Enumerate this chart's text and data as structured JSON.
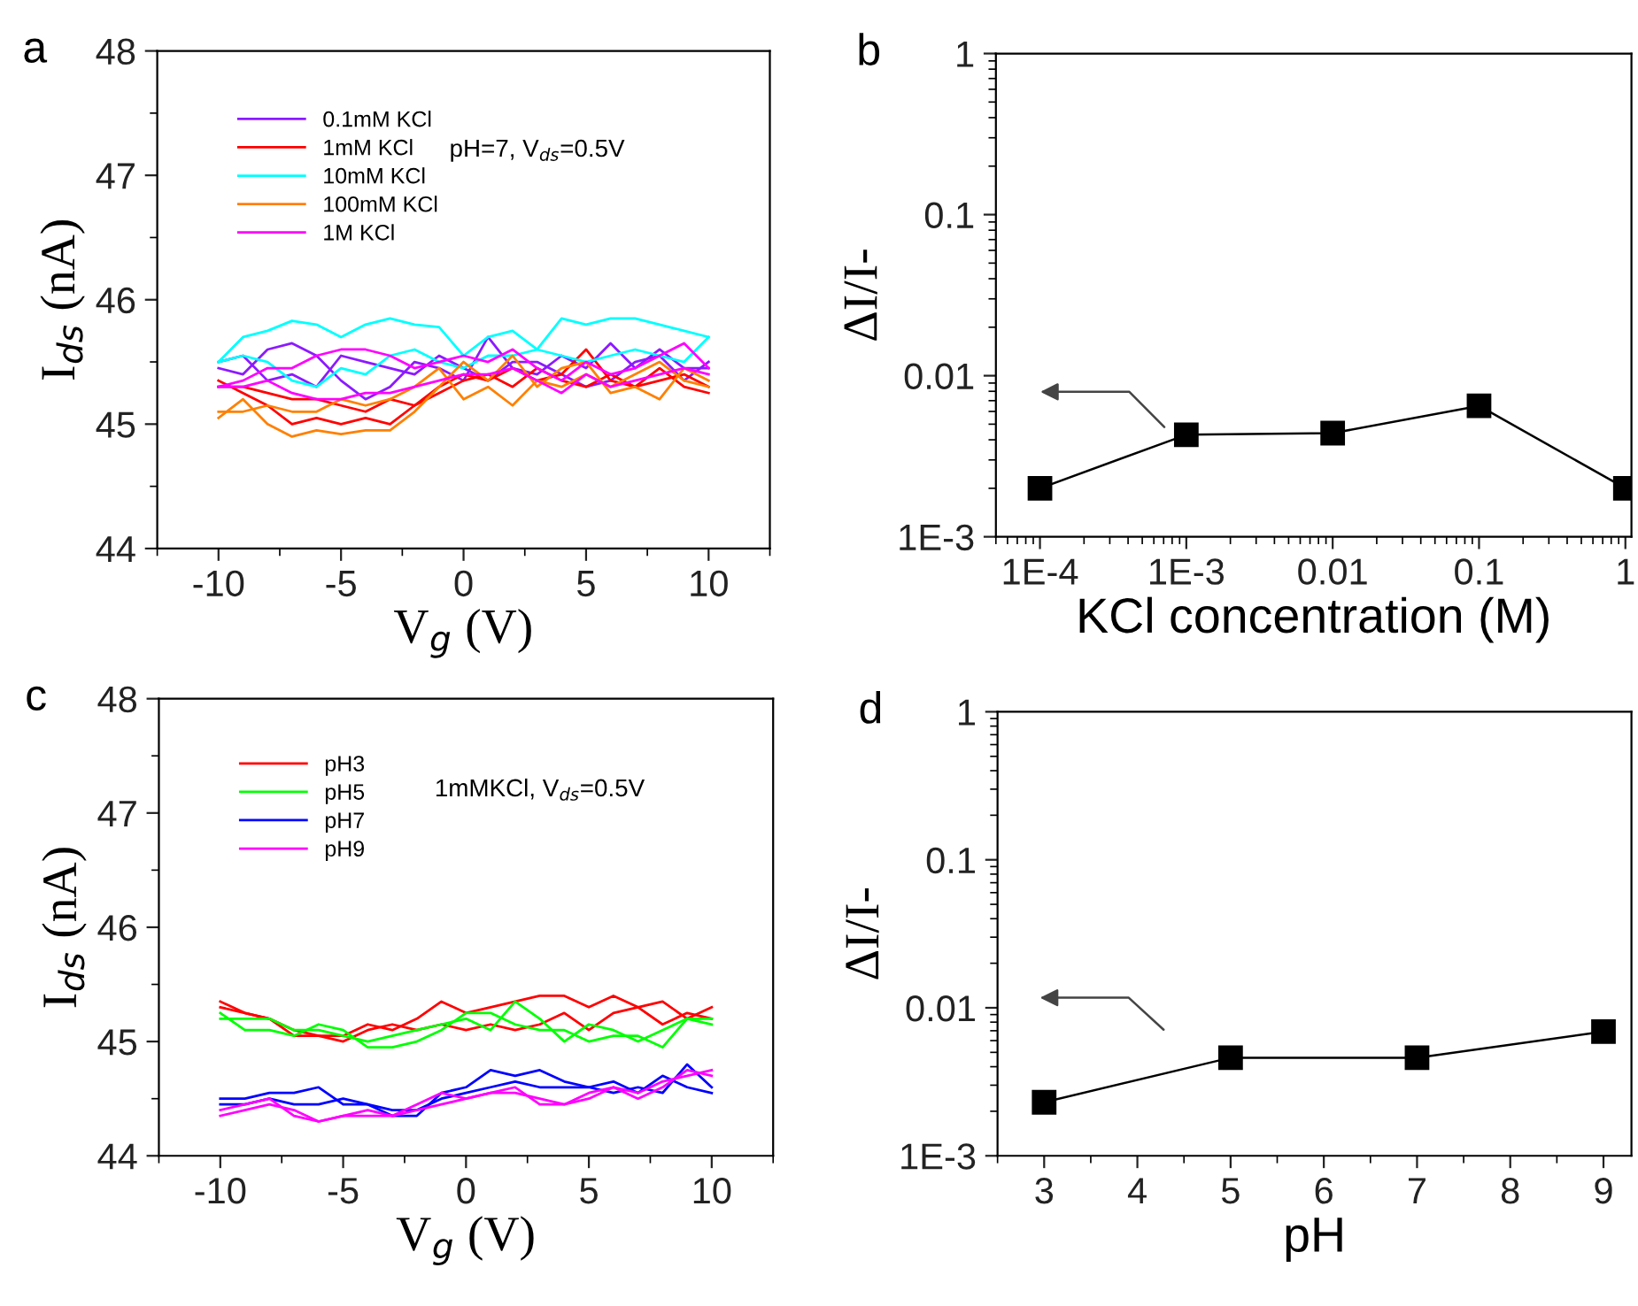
{
  "chart_data": [
    {
      "type": "line",
      "title": "a",
      "xlabel": "V$_{g}$ (V)",
      "ylabel": "I$_{ds}$ (nA)",
      "annotations": [
        "pH=7, V$_{ds}$=0.5V"
      ],
      "x": [
        -10,
        -9,
        -8,
        -7,
        -6,
        -5,
        -4,
        -3,
        -2,
        -1,
        0,
        1,
        2,
        3,
        4,
        5,
        6,
        7,
        8,
        9,
        10
      ],
      "xlim": [
        -12.5,
        12.5
      ],
      "xticks": [
        -10,
        -5,
        0,
        5,
        10
      ],
      "ylim": [
        44,
        48
      ],
      "yticks": [
        44,
        45,
        46,
        47,
        48
      ],
      "legend": "top left",
      "grid": false,
      "series": [
        {
          "name": "0.1mM KCl",
          "color": "#8c1aff",
          "values": [
            45.45,
            45.4,
            45.6,
            45.65,
            45.55,
            45.35,
            45.2,
            45.3,
            45.5,
            45.45,
            45.35,
            45.7,
            45.45,
            45.4,
            45.55,
            45.45,
            45.65,
            45.45,
            45.6,
            45.45,
            45.45
          ]
        },
        {
          "color": "#8c1aff",
          "values": [
            45.5,
            45.55,
            45.35,
            45.4,
            45.3,
            45.55,
            45.5,
            45.45,
            45.4,
            45.55,
            45.45,
            45.35,
            45.5,
            45.5,
            45.4,
            45.3,
            45.35,
            45.5,
            45.55,
            45.35,
            45.5
          ]
        },
        {
          "name": "1mM KCl",
          "color": "#ff0000",
          "values": [
            45.35,
            45.25,
            45.15,
            45.0,
            45.05,
            45.0,
            45.05,
            45.0,
            45.15,
            45.3,
            45.4,
            45.35,
            45.45,
            45.35,
            45.4,
            45.6,
            45.35,
            45.3,
            45.45,
            45.3,
            45.25
          ]
        },
        {
          "color": "#ff0000",
          "values": [
            45.3,
            45.3,
            45.25,
            45.2,
            45.2,
            45.15,
            45.1,
            45.2,
            45.15,
            45.25,
            45.35,
            45.4,
            45.3,
            45.45,
            45.35,
            45.3,
            45.4,
            45.3,
            45.35,
            45.4,
            45.3
          ]
        },
        {
          "name": "10mM KCl",
          "color": "#00ffff",
          "values": [
            45.5,
            45.7,
            45.75,
            45.83,
            45.8,
            45.7,
            45.8,
            45.85,
            45.8,
            45.78,
            45.55,
            45.7,
            45.75,
            45.6,
            45.85,
            45.8,
            45.85,
            45.85,
            45.8,
            45.75,
            45.7
          ]
        },
        {
          "color": "#00ffff",
          "values": [
            45.5,
            45.55,
            45.5,
            45.35,
            45.3,
            45.45,
            45.4,
            45.55,
            45.6,
            45.5,
            45.45,
            45.55,
            45.55,
            45.6,
            45.55,
            45.5,
            45.55,
            45.6,
            45.55,
            45.5,
            45.7
          ]
        },
        {
          "name": "100mM KCl",
          "color": "#ff8000",
          "values": [
            45.05,
            45.2,
            45.0,
            44.9,
            44.95,
            44.92,
            44.95,
            44.95,
            45.1,
            45.3,
            45.5,
            45.35,
            45.55,
            45.3,
            45.45,
            45.5,
            45.25,
            45.3,
            45.2,
            45.45,
            45.35
          ]
        },
        {
          "color": "#ff8000",
          "values": [
            45.1,
            45.1,
            45.15,
            45.1,
            45.1,
            45.2,
            45.15,
            45.2,
            45.3,
            45.45,
            45.2,
            45.3,
            45.15,
            45.35,
            45.3,
            45.4,
            45.3,
            45.4,
            45.5,
            45.35,
            45.3
          ]
        },
        {
          "name": "1M KCl",
          "color": "#ff00ff",
          "values": [
            45.3,
            45.35,
            45.45,
            45.45,
            45.55,
            45.6,
            45.6,
            45.55,
            45.45,
            45.5,
            45.55,
            45.5,
            45.6,
            45.45,
            45.35,
            45.5,
            45.4,
            45.45,
            45.55,
            45.65,
            45.45
          ]
        },
        {
          "color": "#ff00ff",
          "values": [
            45.3,
            45.3,
            45.35,
            45.25,
            45.2,
            45.2,
            45.25,
            45.25,
            45.3,
            45.35,
            45.4,
            45.4,
            45.45,
            45.35,
            45.25,
            45.4,
            45.3,
            45.35,
            45.4,
            45.45,
            45.4
          ]
        }
      ]
    },
    {
      "type": "line",
      "title": "b",
      "xlabel": "KCl concentration (M)",
      "ylabel": "ΔI/I-",
      "log": "xy",
      "marker": "square",
      "legend": false,
      "grid": false,
      "x": [
        0.0001,
        0.001,
        0.01,
        0.1,
        1
      ],
      "xlim": [
        5e-05,
        1.1
      ],
      "xticks": [
        {
          "value": 0.0001,
          "label": "1E-4"
        },
        {
          "value": 0.001,
          "label": "1E-3"
        },
        0.01,
        0.1,
        1
      ],
      "ylim": [
        0.001,
        1
      ],
      "yticks": [
        {
          "value": 0.001,
          "label": "1E-3"
        },
        0.01,
        0.1,
        1
      ],
      "series": [
        {
          "color": "#000000",
          "values": [
            0.002,
            0.0043,
            0.0044,
            0.0065,
            0.002
          ]
        }
      ]
    },
    {
      "type": "line",
      "title": "c",
      "xlabel": "V$_{g}$ (V)",
      "ylabel": "I$_{ds}$ (nA)",
      "annotations": [
        "1mMKCl, V$_{ds}$=0.5V"
      ],
      "x": [
        -10,
        -9,
        -8,
        -7,
        -6,
        -5,
        -4,
        -3,
        -2,
        -1,
        0,
        1,
        2,
        3,
        4,
        5,
        6,
        7,
        8,
        9,
        10
      ],
      "xlim": [
        -12.5,
        12.5
      ],
      "xticks": [
        -10,
        -5,
        0,
        5,
        10
      ],
      "ylim": [
        44,
        48
      ],
      "yticks": [
        44,
        45,
        46,
        47,
        48
      ],
      "legend": "top left",
      "grid": false,
      "series": [
        {
          "name": "pH3",
          "color": "#ff0000",
          "values": [
            45.3,
            45.25,
            45.2,
            45.05,
            45.05,
            45.05,
            45.15,
            45.1,
            45.2,
            45.35,
            45.25,
            45.3,
            45.35,
            45.4,
            45.4,
            45.3,
            45.4,
            45.3,
            45.35,
            45.2,
            45.3
          ]
        },
        {
          "color": "#ff0000",
          "values": [
            45.35,
            45.25,
            45.2,
            45.1,
            45.05,
            45.0,
            45.1,
            45.15,
            45.1,
            45.15,
            45.1,
            45.15,
            45.1,
            45.15,
            45.25,
            45.1,
            45.25,
            45.3,
            45.15,
            45.25,
            45.2
          ]
        },
        {
          "name": "pH5",
          "color": "#00ff00",
          "values": [
            45.25,
            45.1,
            45.1,
            45.05,
            45.15,
            45.1,
            44.95,
            44.95,
            45.0,
            45.1,
            45.25,
            45.25,
            45.15,
            45.1,
            45.1,
            45.0,
            45.05,
            45.05,
            44.95,
            45.2,
            45.15
          ]
        },
        {
          "color": "#00ff00",
          "values": [
            45.2,
            45.2,
            45.2,
            45.1,
            45.1,
            45.05,
            45.0,
            45.05,
            45.1,
            45.15,
            45.2,
            45.1,
            45.35,
            45.2,
            45.0,
            45.15,
            45.1,
            45.0,
            45.1,
            45.2,
            45.2
          ]
        },
        {
          "name": "pH7",
          "color": "#0000ff",
          "values": [
            44.5,
            44.5,
            44.55,
            44.55,
            44.6,
            44.45,
            44.45,
            44.35,
            44.35,
            44.55,
            44.6,
            44.75,
            44.7,
            44.75,
            44.65,
            44.6,
            44.55,
            44.6,
            44.55,
            44.8,
            44.6
          ]
        },
        {
          "color": "#0000ff",
          "values": [
            44.45,
            44.45,
            44.5,
            44.45,
            44.45,
            44.5,
            44.45,
            44.4,
            44.4,
            44.5,
            44.55,
            44.6,
            44.65,
            44.6,
            44.6,
            44.6,
            44.65,
            44.55,
            44.7,
            44.6,
            44.55
          ]
        },
        {
          "name": "pH9",
          "color": "#ff00ff",
          "values": [
            44.35,
            44.4,
            44.45,
            44.4,
            44.3,
            44.35,
            44.35,
            44.35,
            44.45,
            44.55,
            44.5,
            44.55,
            44.6,
            44.45,
            44.45,
            44.55,
            44.6,
            44.55,
            44.65,
            44.7,
            44.75
          ]
        },
        {
          "color": "#ff00ff",
          "values": [
            44.4,
            44.45,
            44.5,
            44.35,
            44.3,
            44.35,
            44.4,
            44.35,
            44.4,
            44.45,
            44.5,
            44.55,
            44.55,
            44.5,
            44.45,
            44.5,
            44.6,
            44.5,
            44.6,
            44.75,
            44.7
          ]
        }
      ]
    },
    {
      "type": "line",
      "title": "d",
      "xlabel": "pH",
      "ylabel": "ΔI/I-",
      "log": "y",
      "marker": "square",
      "legend": false,
      "grid": false,
      "x": [
        3,
        5,
        7,
        9
      ],
      "xlim": [
        2.5,
        9.3
      ],
      "xticks": [
        3,
        4,
        5,
        6,
        7,
        8,
        9
      ],
      "ylim": [
        0.001,
        1
      ],
      "yticks": [
        {
          "value": 0.001,
          "label": "1E-3"
        },
        0.01,
        0.1,
        1
      ],
      "series": [
        {
          "color": "#000000",
          "values": [
            0.0023,
            0.0046,
            0.0046,
            0.0069
          ]
        }
      ]
    }
  ]
}
